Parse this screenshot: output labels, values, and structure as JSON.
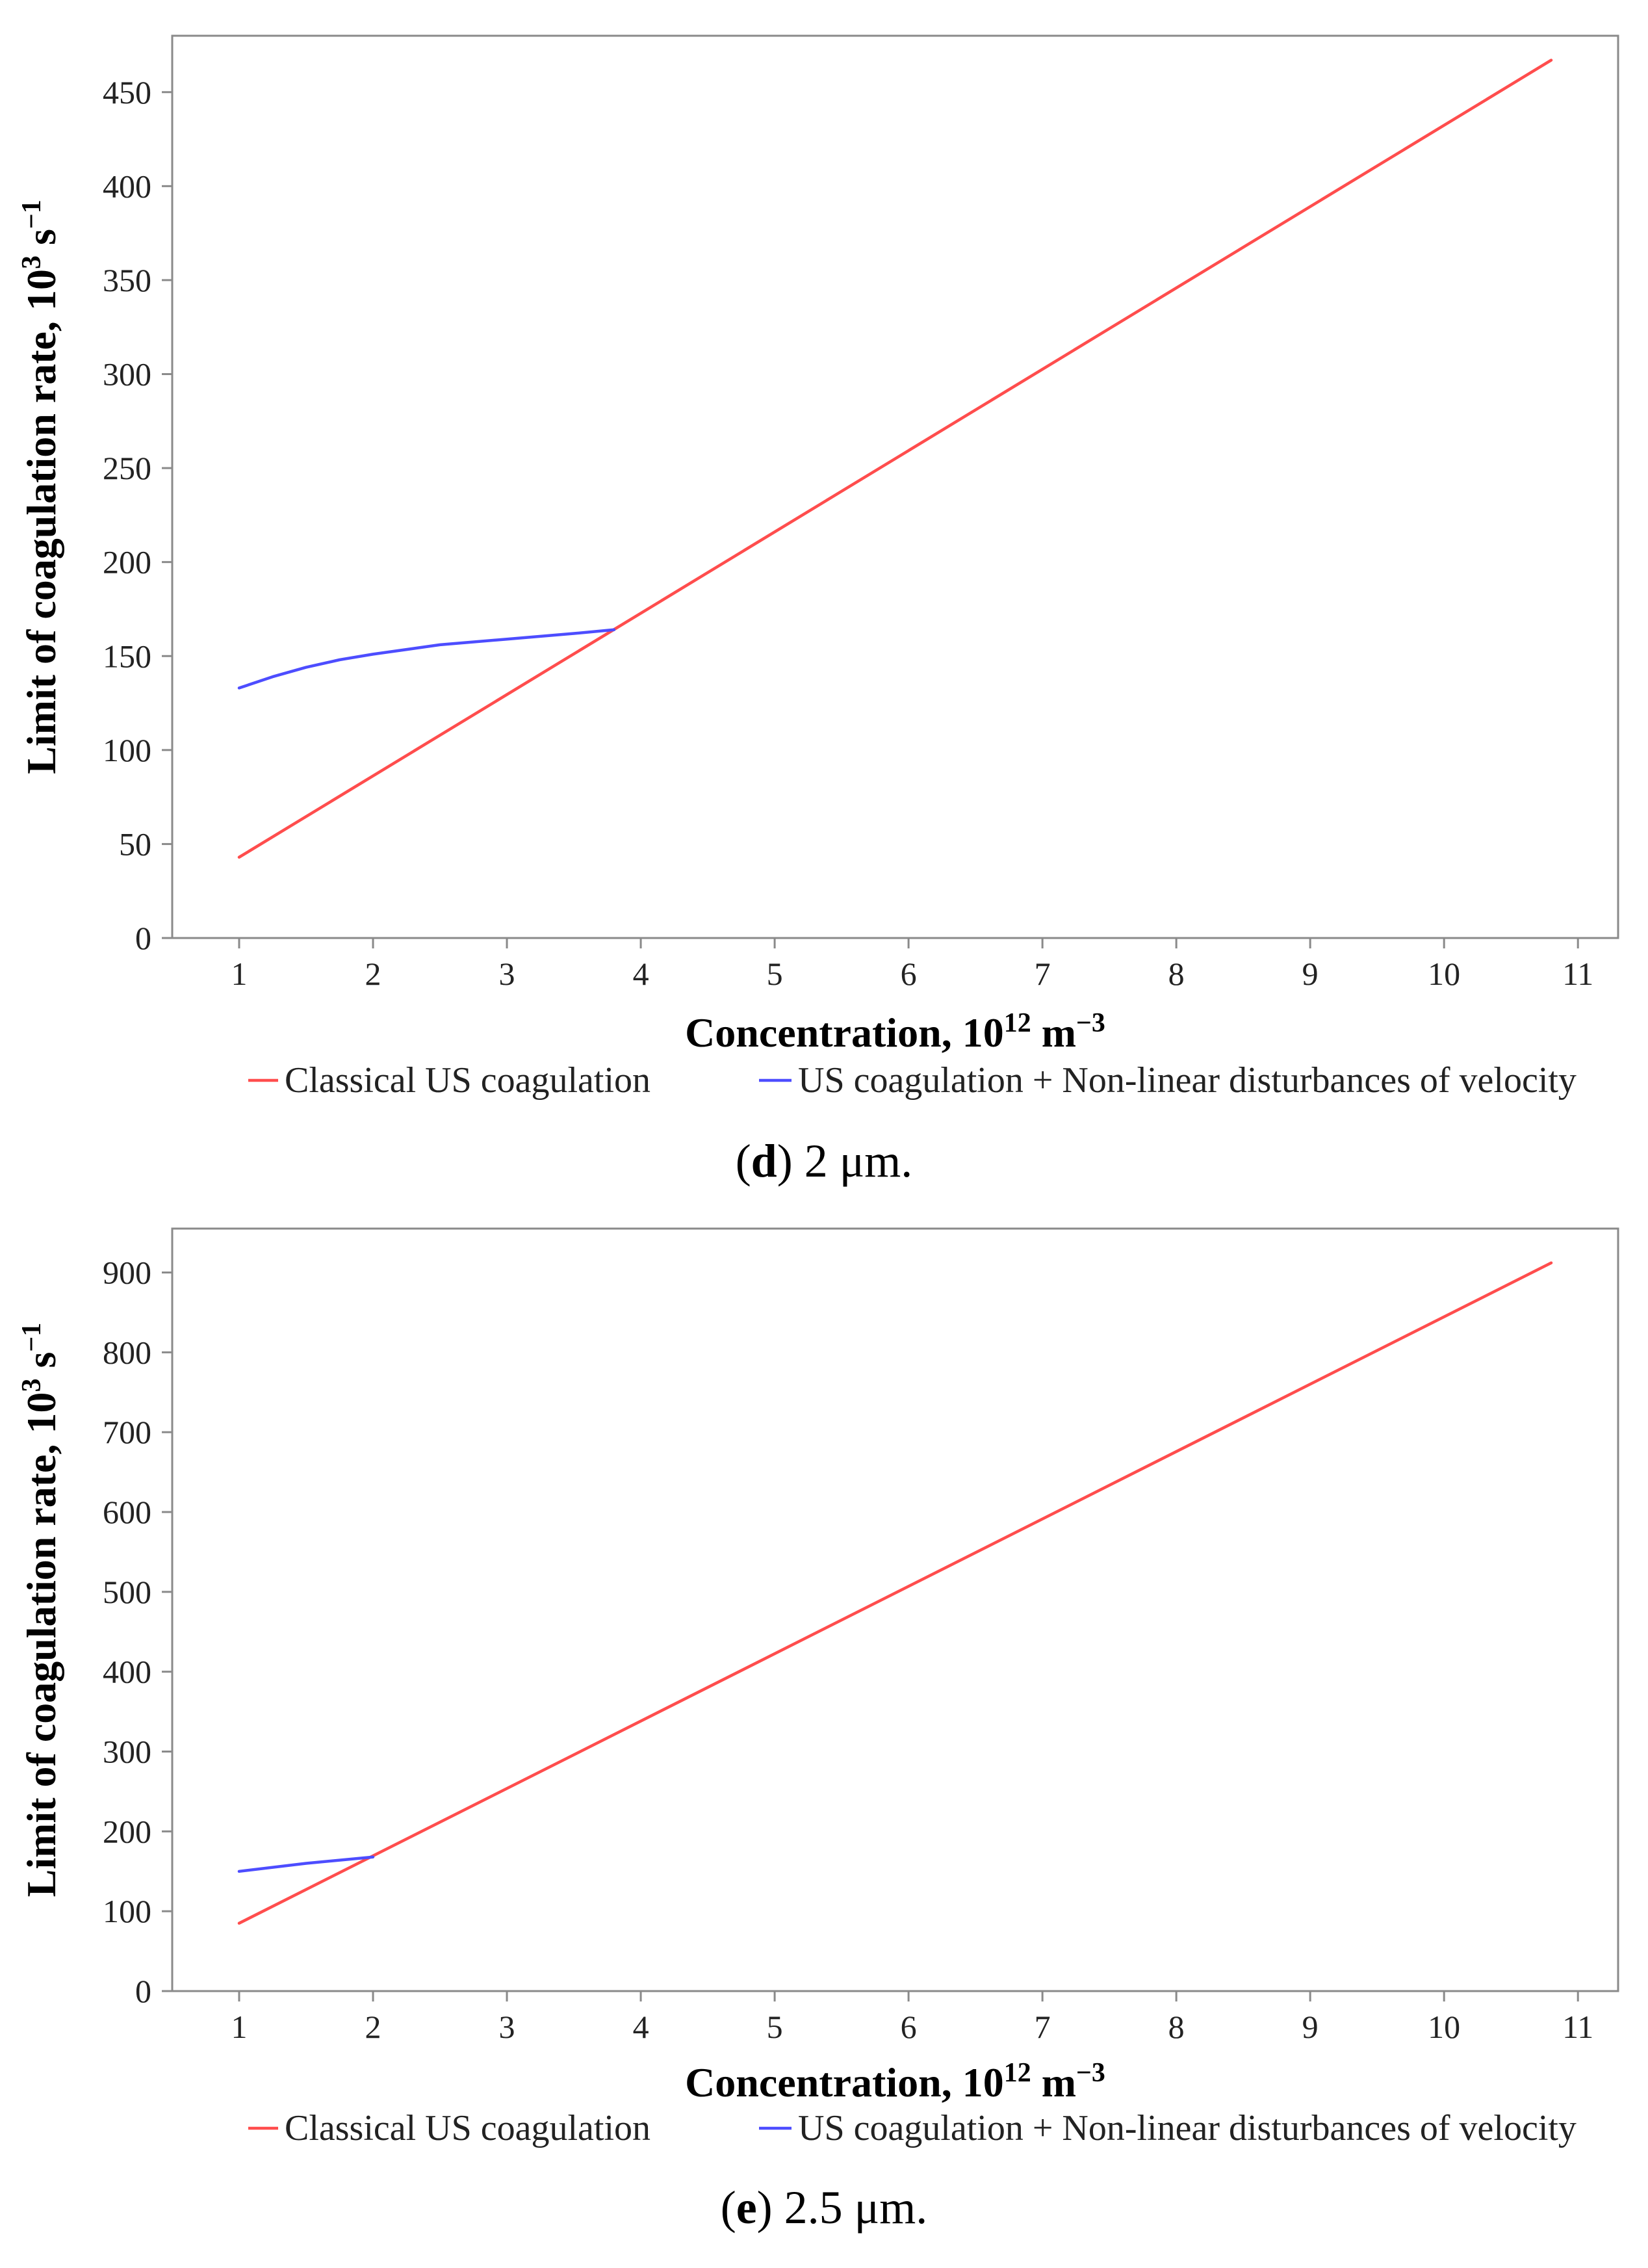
{
  "chart_data": [
    {
      "type": "line",
      "panel_letter": "d",
      "caption_rest": " 2 μm.",
      "xlabel_main": "Concentration, 10",
      "xlabel_exp": "12",
      "xlabel_unit": " m",
      "xlabel_unit_exp": "−3",
      "ylabel_main": "Limit of coagulation rate, 10",
      "ylabel_exp": "3",
      "ylabel_unit": " s",
      "ylabel_unit_exp": "−1",
      "xlim": [
        0.5,
        11.3
      ],
      "ylim": [
        0,
        480
      ],
      "x_ticks": [
        "1",
        "2",
        "3",
        "4",
        "5",
        "6",
        "7",
        "8",
        "9",
        "10",
        "11"
      ],
      "y_ticks": [
        "0",
        "50",
        "100",
        "150",
        "200",
        "250",
        "300",
        "350",
        "400",
        "450"
      ],
      "series": [
        {
          "name": "Classical US coagulation",
          "color": "#ff4d4d",
          "x": [
            1,
            10.8
          ],
          "y": [
            43,
            467
          ]
        },
        {
          "name": "US coagulation + Non-linear disturbances of velocity",
          "color": "#4d4dff",
          "x": [
            1,
            1.25,
            1.5,
            1.75,
            2,
            2.5,
            3,
            3.5,
            3.8
          ],
          "y": [
            133,
            139,
            144,
            148,
            151,
            156,
            159,
            162,
            164
          ]
        }
      ]
    },
    {
      "type": "line",
      "panel_letter": "e",
      "caption_rest": " 2.5 μm.",
      "xlabel_main": "Concentration, 10",
      "xlabel_exp": "12",
      "xlabel_unit": " m",
      "xlabel_unit_exp": "−3",
      "ylabel_main": "Limit of coagulation rate, 10",
      "ylabel_exp": "3",
      "ylabel_unit": " s",
      "ylabel_unit_exp": "−1",
      "xlim": [
        0.5,
        11.3
      ],
      "ylim": [
        0,
        955
      ],
      "x_ticks": [
        "1",
        "2",
        "3",
        "4",
        "5",
        "6",
        "7",
        "8",
        "9",
        "10",
        "11"
      ],
      "y_ticks": [
        "0",
        "100",
        "200",
        "300",
        "400",
        "500",
        "600",
        "700",
        "800",
        "900"
      ],
      "series": [
        {
          "name": "Classical US coagulation",
          "color": "#ff4d4d",
          "x": [
            1,
            10.8
          ],
          "y": [
            85,
            912
          ]
        },
        {
          "name": "US coagulation + Non-linear disturbances of velocity",
          "color": "#4d4dff",
          "x": [
            1,
            1.5,
            2
          ],
          "y": [
            150,
            160,
            168
          ]
        }
      ]
    }
  ]
}
